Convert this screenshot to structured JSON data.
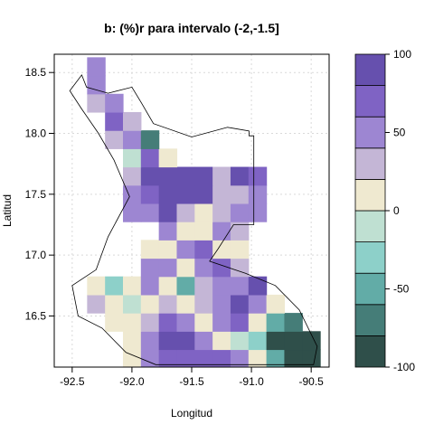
{
  "chart_data": {
    "type": "heatmap",
    "title": "b:   (%)r para intervalo (-2,-1.5]",
    "xlabel": "Longitud",
    "ylabel": "Latitud",
    "xlim": [
      -92.65,
      -90.35
    ],
    "ylim": [
      16.08,
      18.65
    ],
    "x_ticks": [
      {
        "value": -92.5,
        "label": "-92.5"
      },
      {
        "value": -92.0,
        "label": "-92.0"
      },
      {
        "value": -91.5,
        "label": "-91.5"
      },
      {
        "value": -91.0,
        "label": "-91.0"
      },
      {
        "value": -90.5,
        "label": "-90.5"
      }
    ],
    "y_ticks": [
      {
        "value": 16.5,
        "label": "16.5"
      },
      {
        "value": 17.0,
        "label": "17.0"
      },
      {
        "value": 17.5,
        "label": "17.5"
      },
      {
        "value": 18.0,
        "label": "18.0"
      },
      {
        "value": 18.5,
        "label": "18.5"
      }
    ],
    "grid": true,
    "colorbar": {
      "levels": [
        -100,
        -80,
        -60,
        -40,
        -20,
        0,
        20,
        40,
        60,
        80,
        100
      ],
      "tick_values": [
        -100,
        -50,
        0,
        50,
        100
      ],
      "tick_labels": [
        "-100",
        "-50",
        "0",
        "50",
        "100"
      ],
      "colors": [
        "#2f4f4a",
        "#457d78",
        "#62aca7",
        "#8dd0c9",
        "#bfe0d2",
        "#efe9d0",
        "#c4b6d6",
        "#9d86d2",
        "#7f63c4",
        "#6650ae"
      ]
    },
    "grid_lon": [
      -92.45,
      -92.3,
      -92.15,
      -92.0,
      -91.85,
      -91.7,
      -91.55,
      -91.4,
      -91.25,
      -91.1,
      -90.95,
      -90.8,
      -90.65,
      -90.5
    ],
    "grid_lat": [
      16.15,
      16.3,
      16.45,
      16.6,
      16.75,
      16.9,
      17.05,
      17.2,
      17.35,
      17.5,
      17.65,
      17.8,
      17.95,
      18.1,
      18.25,
      18.4,
      18.55
    ],
    "values": [
      [
        null,
        null,
        null,
        20,
        60,
        80,
        80,
        80,
        80,
        60,
        10,
        -40,
        -100,
        -100
      ],
      [
        null,
        null,
        null,
        10,
        60,
        85,
        85,
        60,
        20,
        0,
        -30,
        -80,
        -100,
        -100
      ],
      [
        null,
        null,
        10,
        20,
        40,
        65,
        50,
        20,
        60,
        70,
        10,
        -40,
        -60,
        null
      ],
      [
        null,
        30,
        20,
        0,
        20,
        40,
        10,
        40,
        60,
        85,
        60,
        10,
        null,
        null
      ],
      [
        null,
        5,
        -20,
        10,
        60,
        20,
        -40,
        30,
        60,
        60,
        85,
        null,
        null,
        null
      ],
      [
        null,
        null,
        null,
        null,
        50,
        60,
        20,
        60,
        70,
        40,
        null,
        null,
        null,
        null
      ],
      [
        null,
        null,
        null,
        null,
        15,
        10,
        60,
        70,
        10,
        20,
        null,
        null,
        null,
        null
      ],
      [
        null,
        null,
        null,
        null,
        null,
        50,
        10,
        10,
        60,
        30,
        null,
        null,
        null,
        null
      ],
      [
        null,
        null,
        null,
        60,
        60,
        85,
        40,
        10,
        30,
        60,
        60,
        null,
        null,
        null
      ],
      [
        null,
        null,
        null,
        60,
        80,
        85,
        85,
        85,
        40,
        30,
        60,
        null,
        null,
        null
      ],
      [
        null,
        null,
        null,
        30,
        85,
        85,
        85,
        85,
        30,
        85,
        70,
        null,
        null,
        null
      ],
      [
        null,
        null,
        null,
        0,
        70,
        20,
        null,
        null,
        null,
        null,
        null,
        null,
        null,
        null
      ],
      [
        null,
        null,
        40,
        60,
        -60,
        null,
        null,
        null,
        null,
        null,
        null,
        null,
        null,
        null
      ],
      [
        null,
        null,
        70,
        30,
        null,
        null,
        null,
        null,
        null,
        null,
        null,
        null,
        null,
        null
      ],
      [
        null,
        40,
        60,
        null,
        null,
        null,
        null,
        null,
        null,
        null,
        null,
        null,
        null,
        null
      ],
      [
        null,
        60,
        null,
        null,
        null,
        null,
        null,
        null,
        null,
        null,
        null,
        null,
        null,
        null
      ],
      [
        null,
        60,
        null,
        null,
        null,
        null,
        null,
        null,
        null,
        null,
        null,
        null,
        null,
        null
      ]
    ]
  }
}
